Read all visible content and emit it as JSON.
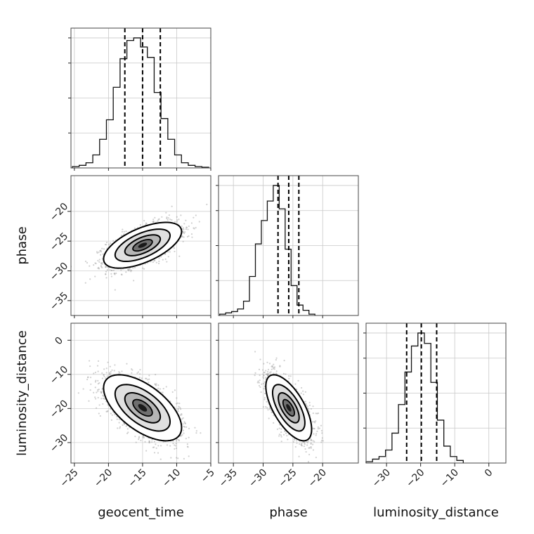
{
  "chart_data": {
    "type": "corner",
    "parameters": [
      "geocent_time",
      "phase",
      "luminosity_distance"
    ],
    "axis_labels": {
      "x": [
        "geocent_time",
        "phase",
        "luminosity_distance"
      ],
      "y": [
        "",
        "phase",
        "luminosity_distance"
      ]
    },
    "ranges": {
      "geocent_time": [
        -25.5,
        -5.0
      ],
      "phase": [
        -37.5,
        -14.0
      ],
      "luminosity_distance": [
        -36.0,
        5.0
      ]
    },
    "ticks": {
      "geocent_time": [
        -25,
        -20,
        -15,
        -10,
        -5
      ],
      "phase": [
        -35,
        -30,
        -25,
        -20
      ],
      "luminosity_distance": [
        -30,
        -20,
        -10,
        0
      ]
    },
    "tick_labels": {
      "geocent_time": [
        "−25",
        "−20",
        "−15",
        "−10",
        "−5"
      ],
      "phase": [
        "−35",
        "−30",
        "−25",
        "−20"
      ],
      "luminosity_distance": [
        "−30",
        "−20",
        "−10",
        "0"
      ],
      "phase_y": [
        "−20",
        "−25",
        "−30",
        "−35"
      ],
      "luminosity_distance_y": [
        "0",
        "−10",
        "−20",
        "−30"
      ]
    },
    "grid": true,
    "quantiles": {
      "geocent_time": [
        -17.6,
        -15.0,
        -12.4
      ],
      "phase": [
        -27.5,
        -25.7,
        -24.0
      ],
      "luminosity_distance": [
        -24.1,
        -19.8,
        -15.3
      ]
    },
    "histograms": {
      "geocent_time": {
        "edges_start": -25.3,
        "bin_width": 1.0,
        "counts": [
          0.01,
          0.02,
          0.04,
          0.1,
          0.22,
          0.37,
          0.62,
          0.84,
          0.98,
          1.0,
          0.93,
          0.85,
          0.58,
          0.38,
          0.22,
          0.1,
          0.04,
          0.02,
          0.01,
          0.005
        ]
      },
      "phase": {
        "edges_start": -37.3,
        "bin_width": 1.0,
        "counts": [
          0.01,
          0.02,
          0.03,
          0.05,
          0.11,
          0.3,
          0.55,
          0.73,
          0.88,
          1.0,
          0.82,
          0.51,
          0.23,
          0.08,
          0.04,
          0.01
        ]
      },
      "luminosity_distance": {
        "edges_start": -36.0,
        "bin_width": 1.9,
        "counts": [
          0.01,
          0.03,
          0.05,
          0.1,
          0.23,
          0.45,
          0.7,
          0.9,
          1.0,
          0.92,
          0.62,
          0.33,
          0.13,
          0.05,
          0.02
        ]
      }
    },
    "correlations": {
      "phase_vs_geocent_time": 0.6,
      "luminosity_distance_vs_geocent_time": -0.6,
      "luminosity_distance_vs_phase": -0.65
    }
  }
}
